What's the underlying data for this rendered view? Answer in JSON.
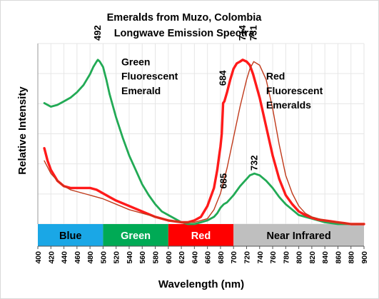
{
  "chart_data": {
    "type": "line",
    "title": "Emeralds from Muzo, Colombia",
    "subtitle": "Longwave Emission Spectra",
    "xlabel": "Wavelength (nm)",
    "ylabel": "Relative Intensity",
    "xlim": [
      400,
      900
    ],
    "ylim": [
      0,
      100
    ],
    "x_ticks": [
      "400",
      "420",
      "440",
      "460",
      "480",
      "500",
      "520",
      "540",
      "560",
      "580",
      "600",
      "620",
      "640",
      "660",
      "680",
      "700",
      "720",
      "740",
      "760",
      "780",
      "800",
      "820",
      "840",
      "860",
      "880",
      "900"
    ],
    "grid": true,
    "bands": [
      {
        "label": "Blue",
        "range": [
          400,
          500
        ],
        "color": "#1aa7e6",
        "text_color": "#000000"
      },
      {
        "label": "Green",
        "range": [
          500,
          600
        ],
        "color": "#00aa55",
        "text_color": "#ffffff"
      },
      {
        "label": "Red",
        "range": [
          600,
          700
        ],
        "color": "#ff0000",
        "text_color": "#ffffff"
      },
      {
        "label": "Near Infrared",
        "range": [
          700,
          900
        ],
        "color": "#bfbfbf",
        "text_color": "#000000"
      }
    ],
    "annotations": [
      {
        "text": "Green",
        "x": 528,
        "y": 88
      },
      {
        "text": "Fluorescent",
        "x": 528,
        "y": 80
      },
      {
        "text": "Emerald",
        "x": 528,
        "y": 72
      },
      {
        "text": "Red",
        "x": 750,
        "y": 80
      },
      {
        "text": "Fluorescent",
        "x": 750,
        "y": 72
      },
      {
        "text": "Emeralds",
        "x": 750,
        "y": 64
      }
    ],
    "peak_labels": [
      {
        "text": "492",
        "x": 492,
        "y": 100,
        "color": "#000000"
      },
      {
        "text": "684",
        "x": 684,
        "y": 75,
        "color": "#000000"
      },
      {
        "text": "714",
        "x": 714,
        "y": 100,
        "color": "#000000"
      },
      {
        "text": "731",
        "x": 731,
        "y": 100,
        "color": "#000000"
      },
      {
        "text": "685",
        "x": 685,
        "y": 18,
        "color": "#000000"
      },
      {
        "text": "732",
        "x": 732,
        "y": 28,
        "color": "#000000"
      }
    ],
    "series": [
      {
        "color": "#22aa55",
        "width": 2.8,
        "x": [
          410,
          420,
          430,
          440,
          450,
          460,
          470,
          480,
          485,
          490,
          492,
          495,
          500,
          505,
          510,
          520,
          530,
          540,
          550,
          560,
          570,
          580,
          590,
          600,
          610,
          620,
          630,
          640,
          650,
          660,
          670,
          675,
          680,
          685,
          690,
          700,
          710,
          720,
          725,
          732,
          740,
          750,
          760,
          770,
          780,
          790,
          800,
          810,
          820,
          830,
          840,
          850,
          860,
          870,
          880,
          890,
          900
        ],
        "y": [
          67,
          65,
          66,
          68,
          70,
          73,
          77,
          83,
          87,
          90,
          91,
          90,
          87,
          80,
          72,
          59,
          48,
          38,
          30,
          22,
          16,
          11,
          7,
          5,
          3,
          1,
          0,
          0,
          1,
          2,
          4,
          6,
          9,
          11,
          12,
          16,
          21,
          25,
          27,
          28,
          27,
          24,
          20,
          15,
          11,
          8,
          5,
          4,
          3,
          2,
          1,
          0.5,
          0,
          0,
          0,
          0,
          0
        ]
      },
      {
        "color": "#ff1a1a",
        "width": 3.4,
        "x": [
          410,
          415,
          420,
          430,
          440,
          450,
          460,
          470,
          480,
          490,
          500,
          510,
          520,
          540,
          560,
          580,
          600,
          620,
          630,
          640,
          650,
          660,
          670,
          675,
          678,
          680,
          682,
          684,
          686,
          690,
          695,
          700,
          705,
          710,
          714,
          720,
          725,
          730,
          740,
          750,
          760,
          770,
          780,
          790,
          800,
          810,
          820,
          830,
          840,
          850,
          860,
          870,
          880,
          890,
          900
        ],
        "y": [
          42,
          35,
          30,
          24,
          21,
          20,
          20,
          20,
          20,
          19,
          17,
          15,
          13,
          10,
          7,
          4,
          2,
          1,
          1,
          2,
          4,
          10,
          20,
          30,
          38,
          43,
          50,
          67,
          68,
          73,
          80,
          86,
          89,
          90,
          91,
          90,
          88,
          83,
          70,
          54,
          38,
          25,
          16,
          11,
          7,
          5,
          3.5,
          2.5,
          2,
          1.5,
          1,
          0.5,
          0,
          0,
          0
        ]
      },
      {
        "color": "#c0391a",
        "width": 1.4,
        "x": [
          410,
          420,
          430,
          440,
          450,
          460,
          470,
          480,
          490,
          500,
          520,
          540,
          560,
          580,
          600,
          620,
          640,
          660,
          670,
          680,
          690,
          700,
          710,
          720,
          725,
          731,
          740,
          750,
          760,
          770,
          780,
          790,
          800,
          810,
          820,
          830,
          840,
          850,
          860,
          870,
          880,
          890,
          900
        ],
        "y": [
          35,
          28,
          24,
          21,
          19,
          18,
          17,
          16,
          15,
          14,
          11,
          8,
          6,
          4,
          2,
          1,
          1,
          3,
          8,
          17,
          31,
          48,
          65,
          80,
          86,
          90,
          88,
          80,
          64,
          44,
          27,
          17,
          10,
          6,
          4,
          3,
          2,
          1.5,
          1,
          0.5,
          0,
          0,
          0
        ]
      }
    ]
  }
}
